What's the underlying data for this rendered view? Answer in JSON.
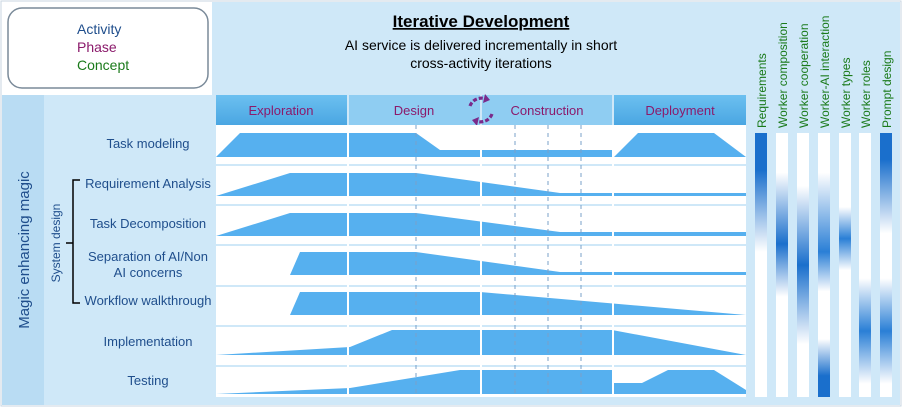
{
  "legend": {
    "activity_label": "Activity",
    "phase_label": "Phase",
    "concept_label": "Concept"
  },
  "header": {
    "title": "Iterative Development",
    "subtitle_line1": "AI service is delivered incrementally in short",
    "subtitle_line2": "cross-activity iterations"
  },
  "phases": [
    {
      "label": "Exploration"
    },
    {
      "label": "Design"
    },
    {
      "label": "Construction"
    },
    {
      "label": "Deployment"
    }
  ],
  "side": {
    "group_label": "Magic enhancing magic",
    "subgroup_label": "System design"
  },
  "activities": [
    {
      "label": "Task modeling"
    },
    {
      "label": "Requirement Analysis"
    },
    {
      "label": "Task Decomposition"
    },
    {
      "label_line1": "Separation of AI/Non",
      "label_line2": "AI concerns"
    },
    {
      "label": "Workflow walkthrough"
    },
    {
      "label": "Implementation"
    },
    {
      "label": "Testing"
    }
  ],
  "concepts": [
    {
      "label": "Requirements"
    },
    {
      "label": "Worker composition"
    },
    {
      "label": "Worker cooperation"
    },
    {
      "label": "Worker-AI interaction"
    },
    {
      "label": "Worker types"
    },
    {
      "label": "Worker roles"
    },
    {
      "label": "Prompt design"
    }
  ],
  "colors": {
    "activity": "#1f4e8c",
    "phase": "#8b1a6b",
    "concept": "#1a7a1a",
    "header_bg": "#cfe8f8",
    "phase_bar": "#5cb4ea",
    "curve_fill": "#56b0ef",
    "concept_dark": "#1a6fcc"
  }
}
